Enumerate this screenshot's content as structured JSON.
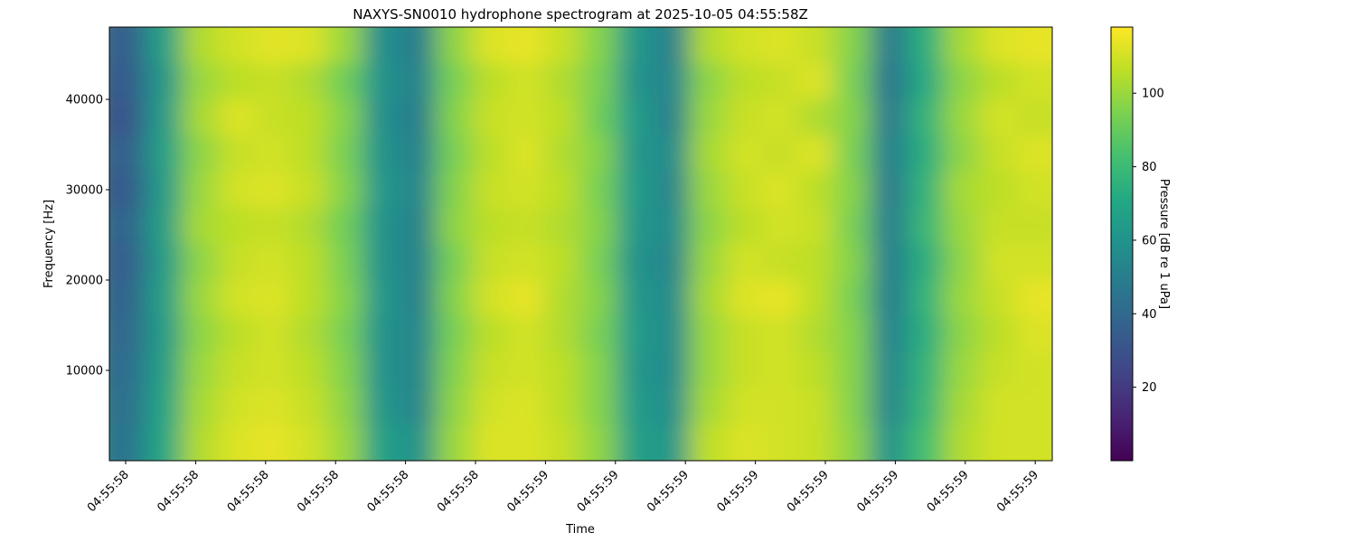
{
  "chart_data": {
    "type": "heatmap",
    "title": "NAXYS-SN0010 hydrophone spectrogram at 2025-10-05 04:55:58Z",
    "xlabel": "Time",
    "ylabel": "Frequency [Hz]",
    "x_tick_labels": [
      "04:55:58",
      "04:55:58",
      "04:55:58",
      "04:55:58",
      "04:55:58",
      "04:55:58",
      "04:55:59",
      "04:55:59",
      "04:55:59",
      "04:55:59",
      "04:55:59",
      "04:55:59",
      "04:55:59",
      "04:55:59"
    ],
    "y_ticks": [
      10000,
      20000,
      30000,
      40000
    ],
    "ylim": [
      0,
      48000
    ],
    "colorbar": {
      "label": "Pressure [dB re 1 uPa]",
      "ticks": [
        20,
        40,
        60,
        80,
        100
      ],
      "range": [
        0,
        118
      ],
      "colormap": "viridis"
    },
    "frequency_bands_hz_top_to_bottom": [
      46000,
      42000,
      38000,
      34000,
      30000,
      26000,
      22000,
      18000,
      14000,
      10000,
      6000,
      2000
    ],
    "values": [
      [
        36,
        66,
        104,
        110,
        113,
        112,
        100,
        58,
        50,
        98,
        112,
        114,
        108,
        96,
        62,
        52,
        104,
        110,
        112,
        108,
        96,
        48,
        74,
        102,
        112,
        114
      ],
      [
        34,
        62,
        100,
        106,
        108,
        104,
        92,
        60,
        52,
        94,
        106,
        110,
        104,
        94,
        60,
        54,
        98,
        106,
        108,
        112,
        94,
        46,
        72,
        98,
        106,
        110
      ],
      [
        32,
        64,
        102,
        112,
        108,
        106,
        96,
        58,
        50,
        96,
        108,
        110,
        106,
        92,
        64,
        52,
        100,
        108,
        110,
        104,
        96,
        48,
        76,
        100,
        110,
        108
      ],
      [
        36,
        66,
        98,
        108,
        110,
        106,
        94,
        60,
        52,
        94,
        106,
        112,
        104,
        96,
        62,
        56,
        102,
        110,
        108,
        112,
        94,
        50,
        74,
        98,
        108,
        112
      ],
      [
        34,
        64,
        100,
        110,
        112,
        108,
        96,
        62,
        54,
        96,
        108,
        110,
        106,
        94,
        64,
        54,
        100,
        108,
        112,
        106,
        96,
        48,
        76,
        102,
        106,
        110
      ],
      [
        38,
        66,
        102,
        106,
        108,
        104,
        92,
        60,
        52,
        98,
        106,
        108,
        104,
        96,
        62,
        56,
        98,
        106,
        110,
        108,
        94,
        50,
        78,
        100,
        108,
        108
      ],
      [
        36,
        64,
        98,
        108,
        110,
        106,
        94,
        60,
        52,
        94,
        108,
        110,
        106,
        94,
        60,
        54,
        100,
        110,
        108,
        106,
        96,
        50,
        74,
        98,
        110,
        110
      ],
      [
        38,
        66,
        100,
        110,
        112,
        106,
        96,
        62,
        52,
        96,
        110,
        114,
        104,
        96,
        62,
        56,
        102,
        112,
        114,
        106,
        94,
        50,
        76,
        100,
        108,
        114
      ],
      [
        40,
        64,
        98,
        106,
        110,
        104,
        94,
        60,
        54,
        94,
        106,
        110,
        104,
        94,
        64,
        56,
        100,
        108,
        110,
        104,
        96,
        52,
        74,
        98,
        106,
        112
      ],
      [
        42,
        66,
        100,
        108,
        110,
        106,
        96,
        60,
        54,
        96,
        108,
        110,
        106,
        96,
        62,
        56,
        100,
        108,
        110,
        106,
        96,
        54,
        76,
        100,
        108,
        110
      ],
      [
        44,
        68,
        102,
        110,
        112,
        108,
        98,
        62,
        54,
        98,
        110,
        112,
        106,
        96,
        64,
        58,
        102,
        110,
        110,
        108,
        96,
        54,
        78,
        102,
        110,
        110
      ],
      [
        46,
        70,
        104,
        112,
        114,
        110,
        100,
        66,
        60,
        100,
        112,
        112,
        108,
        98,
        66,
        62,
        106,
        112,
        110,
        108,
        98,
        60,
        82,
        104,
        110,
        110
      ]
    ]
  }
}
